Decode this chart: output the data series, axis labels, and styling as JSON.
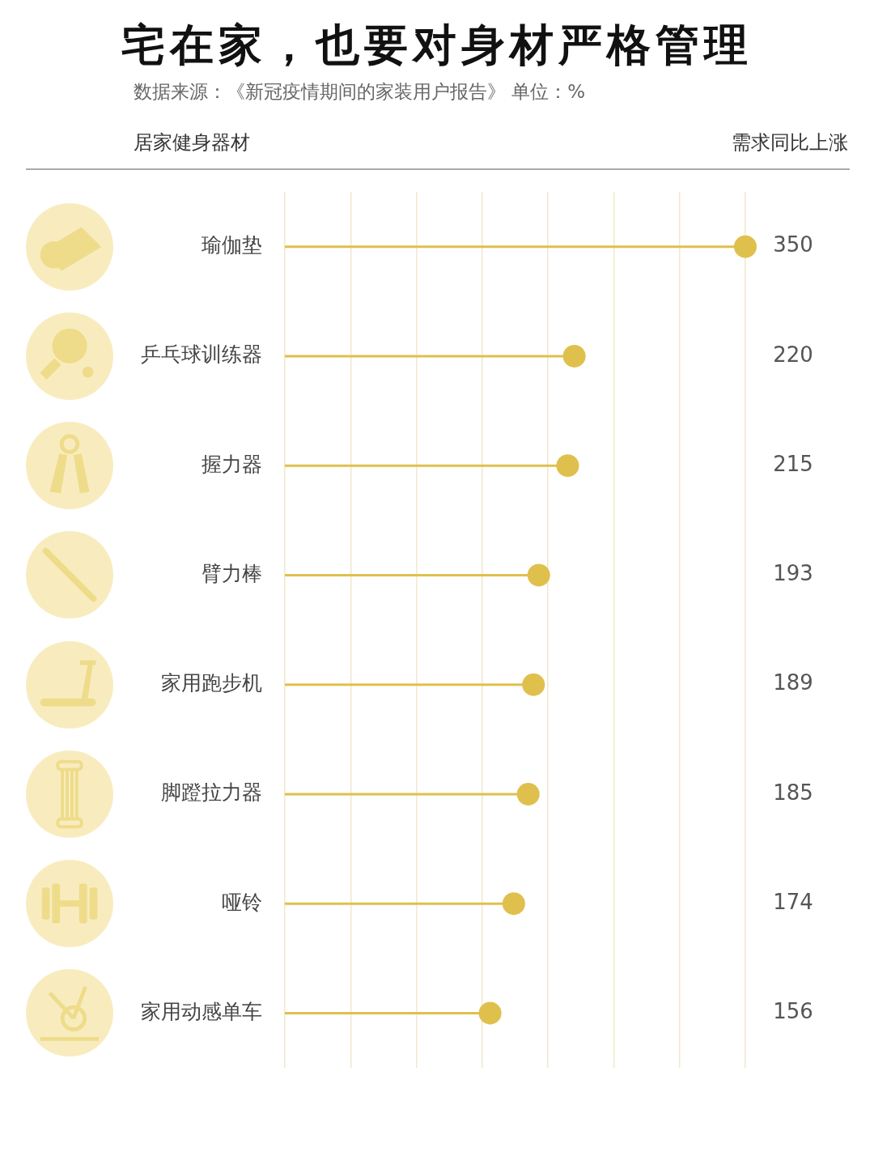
{
  "chart_data": {
    "type": "lollipop",
    "title": "宅在家，也要对身材严格管理",
    "subtitle": "数据来源：《新冠疫情期间的家装用户报告》 单位：%",
    "ylabel": "居家健身器材",
    "annotations": [
      "需求同比上涨"
    ],
    "orientation": "horizontal",
    "categories": [
      "瑜伽垫",
      "乒乓球训练器",
      "握力器",
      "臂力棒",
      "家用跑步机",
      "脚蹬拉力器",
      "哑铃",
      "家用动感单车"
    ],
    "values": [
      350,
      220,
      215,
      193,
      189,
      185,
      174,
      156
    ],
    "color": "#e0c04d",
    "xlim": [
      0,
      350
    ],
    "xticks": [
      {
        "value": 0,
        "label": null
      },
      {
        "value": 50,
        "label": null
      },
      {
        "value": 100,
        "label": null
      },
      {
        "value": 150,
        "label": null
      },
      {
        "value": 200,
        "label": null
      },
      {
        "value": 250,
        "label": null
      },
      {
        "value": 300,
        "label": null
      },
      {
        "value": 350,
        "label": null
      }
    ],
    "grid": "x",
    "tick_labels": "y",
    "data_labels": true
  }
}
